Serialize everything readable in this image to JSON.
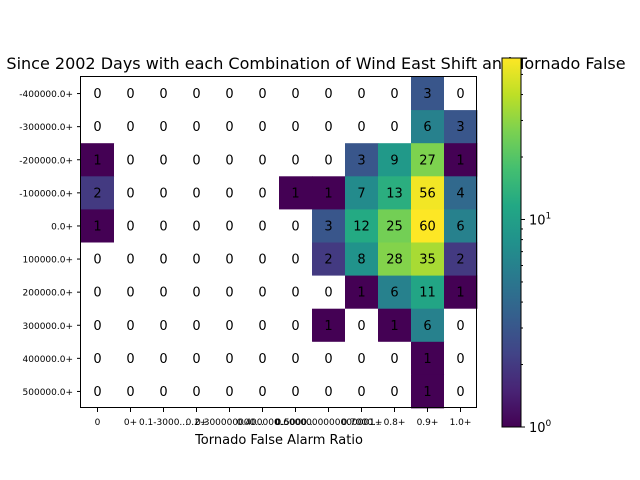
{
  "chart_data": {
    "type": "heatmap",
    "title": "Since 2002 Days with each Combination of Wind East Shift and Tornado False",
    "xlabel": "Tornado False Alarm Ratio",
    "ylabel": "",
    "x_categories": [
      "0",
      "0+",
      "0.1-3000...",
      "0.2+",
      "0.300000000...",
      "0.400000...",
      "0.5000...",
      "0.6000000000000001+",
      "0.7000...",
      "0.8+",
      "0.9+",
      "1.0+"
    ],
    "y_categories": [
      "-400000.0+",
      "-300000.0+",
      "-200000.0+",
      "-100000.0+",
      "0.0+",
      "100000.0+",
      "200000.0+",
      "300000.0+",
      "400000.0+",
      "500000.0+"
    ],
    "values": [
      [
        0,
        0,
        0,
        0,
        0,
        0,
        0,
        0,
        0,
        0,
        3,
        0
      ],
      [
        0,
        0,
        0,
        0,
        0,
        0,
        0,
        0,
        0,
        0,
        6,
        3
      ],
      [
        1,
        0,
        0,
        0,
        0,
        0,
        0,
        0,
        3,
        9,
        27,
        1
      ],
      [
        2,
        0,
        0,
        0,
        0,
        0,
        1,
        1,
        7,
        13,
        56,
        4
      ],
      [
        1,
        0,
        0,
        0,
        0,
        0,
        0,
        3,
        12,
        25,
        60,
        6
      ],
      [
        0,
        0,
        0,
        0,
        0,
        0,
        0,
        2,
        8,
        28,
        35,
        2
      ],
      [
        0,
        0,
        0,
        0,
        0,
        0,
        0,
        0,
        1,
        6,
        11,
        1
      ],
      [
        0,
        0,
        0,
        0,
        0,
        0,
        0,
        1,
        0,
        1,
        6,
        0
      ],
      [
        0,
        0,
        0,
        0,
        0,
        0,
        0,
        0,
        0,
        0,
        1,
        0
      ],
      [
        0,
        0,
        0,
        0,
        0,
        0,
        0,
        0,
        0,
        0,
        1,
        0
      ]
    ],
    "color_scale": "log",
    "colormap": "viridis",
    "zero_color": "#ffffff",
    "value_range": [
      1,
      60
    ],
    "colorbar_ticks": [
      {
        "value": 1,
        "label": "10",
        "exp": "0"
      },
      {
        "value": 10,
        "label": "10",
        "exp": "1"
      }
    ],
    "grid": false
  }
}
